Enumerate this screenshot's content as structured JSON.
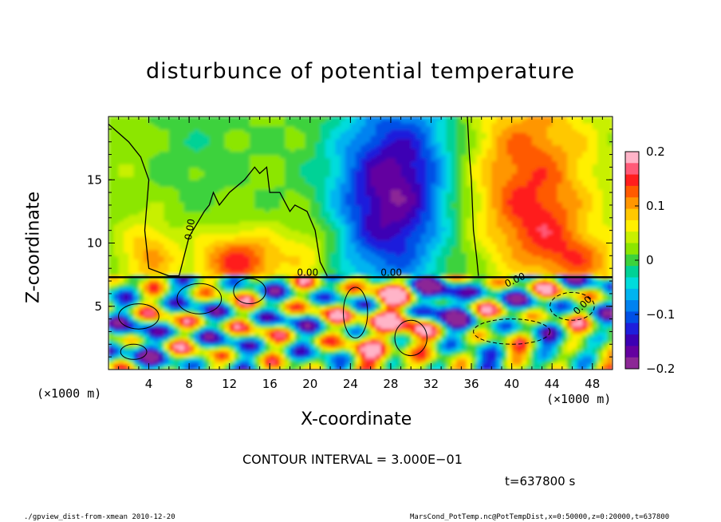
{
  "chart_data": {
    "type": "heatmap",
    "title": "disturbunce of potential temperature",
    "xlabel": "X-coordinate",
    "ylabel": "Z-coordinate",
    "x_unit": "(×1000 m)",
    "z_unit": "(×1000 m)",
    "xlim": [
      0,
      50
    ],
    "ylim": [
      0,
      20
    ],
    "x_ticks": [
      4,
      8,
      12,
      16,
      20,
      24,
      28,
      32,
      36,
      40,
      44,
      48
    ],
    "y_ticks": [
      5,
      10,
      15
    ],
    "colorbar": {
      "range": [
        -0.2,
        0.2
      ],
      "tick_values": [
        0.2,
        0.1,
        0,
        -0.1,
        -0.2
      ],
      "tick_labels": [
        "0.2",
        "0.1",
        "0",
        "−0.1",
        "−0.2"
      ],
      "colors": [
        "#ffb4c8",
        "#ff5a78",
        "#ff1e1e",
        "#ff5a00",
        "#ff9600",
        "#ffc800",
        "#fff000",
        "#c8f000",
        "#8ce600",
        "#3cd23c",
        "#00d296",
        "#00dcdc",
        "#00b4f0",
        "#0082f0",
        "#0050e6",
        "#1e1edc",
        "#3c00b4",
        "#6400a0",
        "#8c2896"
      ]
    },
    "contour_labels": [
      "0.00",
      "0.00",
      "0.00",
      "0.00",
      "0.00"
    ],
    "contour_interval_label": "CONTOUR INTERVAL = 3.000E−01",
    "time_label": "t=637800 s"
  },
  "footer": {
    "left": "./gpview_dist-from-xmean  2010-12-20",
    "right": "MarsCond_PotTemp.nc@PotTempDist,x=0:50000,z=0:20000,t=637800"
  }
}
